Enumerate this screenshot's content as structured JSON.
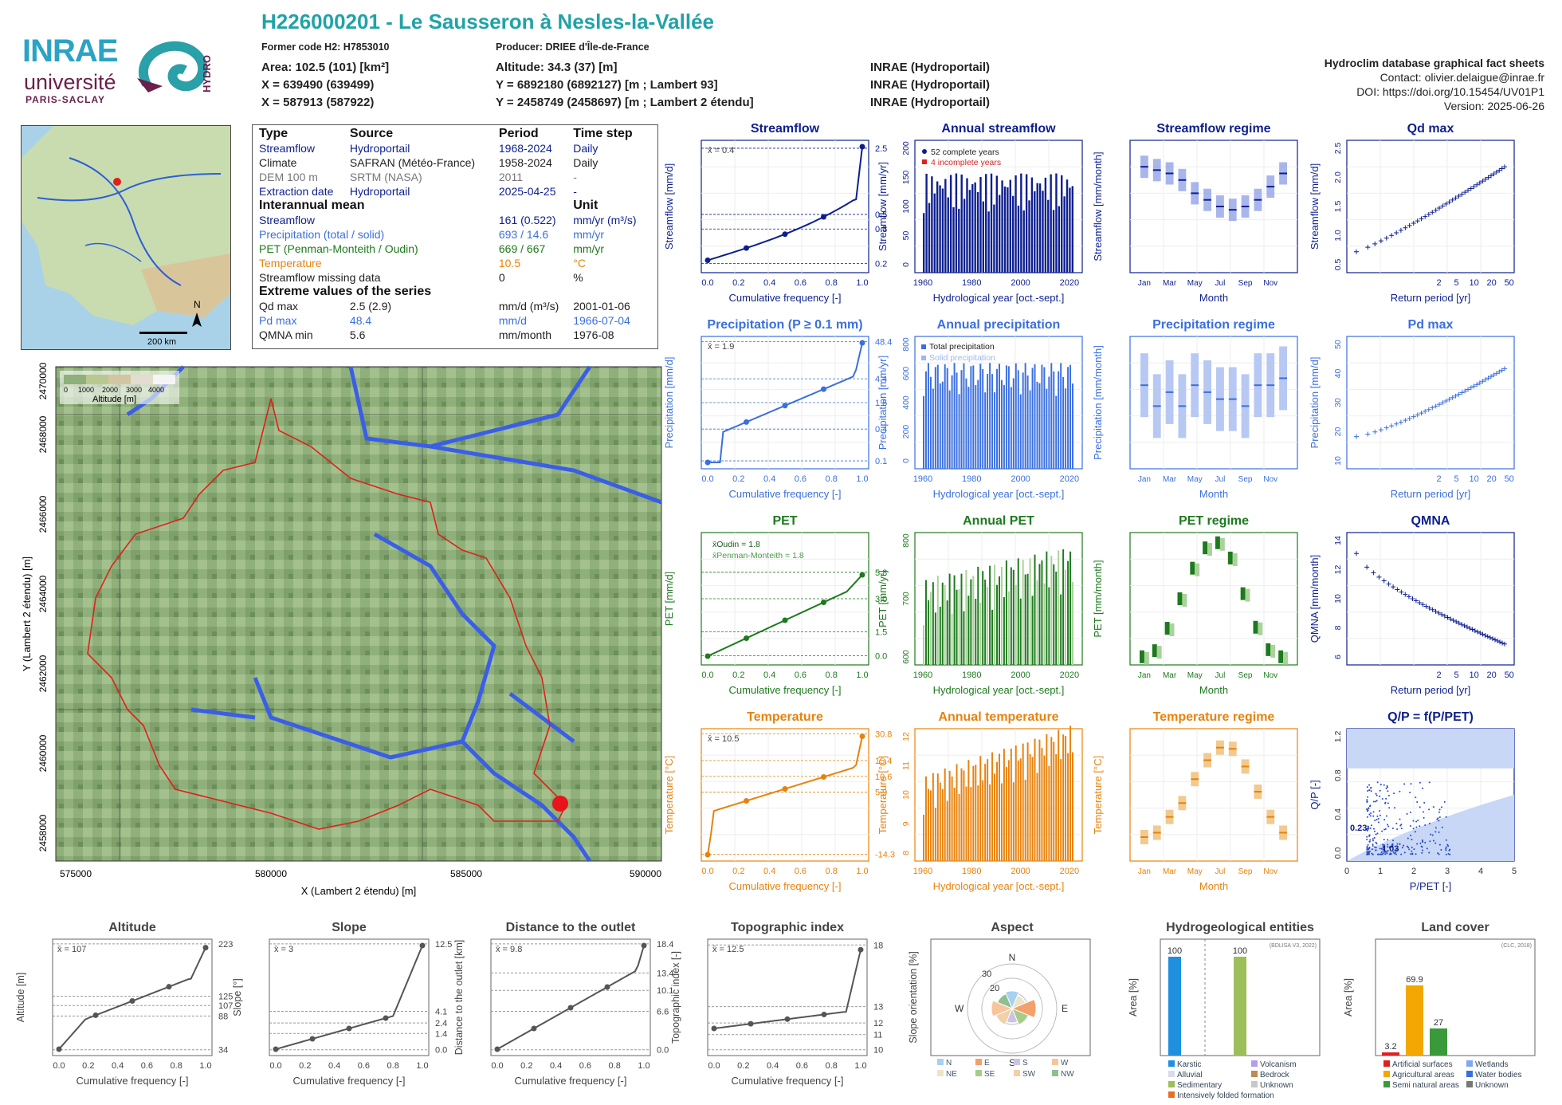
{
  "header": {
    "title": "H226000201 - Le Sausseron à Nesles-la-Vallée",
    "former_code": "Former code H2: H7853010",
    "producer": "Producer: DRIEE d'Île-de-France",
    "area": "Area: 102.5 (101) [km²]",
    "altitude": "Altitude: 34.3 (37) [m]",
    "x93": "X = 639490 (639499)",
    "y93": "Y = 6892180 (6892127) [m ; Lambert 93]",
    "x2": "X = 587913 (587922)",
    "y2": "Y = 2458749 (2458697) [m ; Lambert 2 étendu]",
    "src1": "INRAE (Hydroportail)",
    "src2": "INRAE (Hydroportail)",
    "src3": "INRAE (Hydroportail)",
    "db_title": "Hydroclim database graphical fact sheets",
    "contact": "Contact: olivier.delaigue@inrae.fr",
    "doi": "DOI: https://doi.org/10.15454/UV01P1",
    "version": "Version: 2025-06-26"
  },
  "logos": {
    "inrae": "INRAE",
    "universite": "université",
    "paris_saclay": "PARIS-SACLAY",
    "hydro": "HYDRO"
  },
  "colors": {
    "flow": "#0d1f8f",
    "prec": "#3a6fe0",
    "pet": "#1d7a1d",
    "temp": "#e8820c",
    "title_teal": "#20a3a8",
    "basin": "#e0201c"
  },
  "info": {
    "h_type": "Type",
    "h_source": "Source",
    "h_period": "Period",
    "h_step": "Time step",
    "rows": [
      {
        "type": "Streamflow",
        "source": "Hydroportail",
        "period": "1968-2024",
        "step": "Daily",
        "cls": "c-flow"
      },
      {
        "type": "Climate",
        "source": "SAFRAN (Météo-France)",
        "period": "1958-2024",
        "step": "Daily",
        "cls": ""
      },
      {
        "type": "DEM 100 m",
        "source": "SRTM (NASA)",
        "period": "2011",
        "step": "-",
        "cls": "c-gray"
      },
      {
        "type": "Extraction date",
        "source": "Hydroportail",
        "period": "2025-04-25",
        "step": "-",
        "cls": "c-flow"
      }
    ],
    "h_mean": "Interannual mean",
    "h_unit": "Unit",
    "means": [
      {
        "name": "Streamflow",
        "value": "161 (0.522)",
        "unit": "mm/yr (m³/s)",
        "cls": "c-flow"
      },
      {
        "name": "Precipitation (total / solid)",
        "value": "693 / 14.6",
        "unit": "mm/yr",
        "cls": "c-prec"
      },
      {
        "name": "PET (Penman-Monteith / Oudin)",
        "value": "669 / 667",
        "unit": "mm/yr",
        "cls": "c-pet"
      },
      {
        "name": "Temperature",
        "value": "10.5",
        "unit": "°C",
        "cls": "c-temp"
      },
      {
        "name": "Streamflow missing data",
        "value": "0",
        "unit": "%",
        "cls": ""
      }
    ],
    "h_extreme": "Extreme values of the series",
    "extremes": [
      {
        "name": "Qd max",
        "value": "2.5 (2.9)",
        "unit": "mm/d (m³/s)",
        "date": "2001-01-06",
        "cls": ""
      },
      {
        "name": "Pd max",
        "value": "48.4",
        "unit": "mm/d",
        "date": "1966-07-04",
        "cls": "c-prec"
      },
      {
        "name": "QMNA min",
        "value": "5.6",
        "unit": "mm/month",
        "date": "1976-08",
        "cls": ""
      }
    ]
  },
  "inset_map": {
    "scale": "200 km",
    "north": "N"
  },
  "basin_map": {
    "xlabel": "X (Lambert 2 étendu) [m]",
    "ylabel": "Y (Lambert 2 étendu) [m]",
    "xticks": [
      "575000",
      "580000",
      "585000",
      "590000"
    ],
    "yticks": [
      "2458000",
      "2460000",
      "2462000",
      "2464000",
      "2466000",
      "2468000",
      "2470000"
    ],
    "legend_title": "Altitude [m]",
    "legend_ticks": [
      "0",
      "1000",
      "2000",
      "3000",
      "4000"
    ]
  },
  "chart_data": [
    {
      "id": "streamflow",
      "type": "line",
      "title": "Streamflow",
      "xlabel": "Cumulative frequency [-]",
      "ylabel": "Streamflow [mm/d]",
      "mean": "x̄ = 0.4",
      "right_ticks": [
        "2.5",
        "0.5",
        "0.3",
        "0.2"
      ],
      "x": [
        0,
        0.25,
        0.5,
        0.75,
        1
      ],
      "y": [
        0.2,
        0.3,
        0.4,
        0.5,
        2.5
      ]
    },
    {
      "id": "annual_streamflow",
      "type": "bar",
      "title": "Annual streamflow",
      "xlabel": "Hydrological year [oct.-sept.]",
      "ylabel": "Streamflow [mm/yr]",
      "legend": [
        "52 complete years",
        "4 incomplete years"
      ],
      "xticks": [
        "1960",
        "1980",
        "2000",
        "2020"
      ],
      "yticks": [
        "0",
        "50",
        "100",
        "150",
        "200"
      ]
    },
    {
      "id": "streamflow_regime",
      "type": "bar",
      "title": "Streamflow regime",
      "xlabel": "Month",
      "ylabel": "Streamflow [mm/month]",
      "months": [
        "Jan",
        "Mar",
        "May",
        "Jul",
        "Sep",
        "Nov"
      ],
      "values": [
        16,
        15.5,
        15,
        14,
        12,
        11,
        10,
        9.5,
        10,
        11,
        13,
        15
      ]
    },
    {
      "id": "qd_max",
      "type": "scatter",
      "title": "Qd max",
      "xlabel": "Return period [yr]",
      "ylabel": "Streamflow [mm/d]",
      "xticks": [
        "2",
        "5",
        "10",
        "20",
        "50"
      ],
      "yticks": [
        "0.5",
        "1.0",
        "1.5",
        "2.0",
        "2.5"
      ]
    },
    {
      "id": "precipitation",
      "type": "line",
      "title": "Precipitation (P ≥ 0.1 mm)",
      "xlabel": "Cumulative frequency [-]",
      "ylabel": "Precipitation [mm/d]",
      "mean": "x̄ = 1.9",
      "right_ticks": [
        "48.4",
        "4.4",
        "1.5",
        "0.4",
        "0.1"
      ]
    },
    {
      "id": "annual_precipitation",
      "type": "bar",
      "title": "Annual precipitation",
      "xlabel": "Hydrological year [oct.-sept.]",
      "ylabel": "Precipitation [mm/yr]",
      "legend": [
        "Total precipitation",
        "Solid precipitation"
      ],
      "xticks": [
        "1960",
        "1980",
        "2000",
        "2020"
      ],
      "yticks": [
        "0",
        "200",
        "400",
        "600",
        "800"
      ]
    },
    {
      "id": "precipitation_regime",
      "type": "bar",
      "title": "Precipitation regime",
      "xlabel": "Month",
      "ylabel": "Precipitation [mm/month]",
      "months": [
        "Jan",
        "Mar",
        "May",
        "Jul",
        "Sep",
        "Nov"
      ],
      "values": [
        60,
        45,
        55,
        45,
        60,
        55,
        50,
        50,
        45,
        60,
        60,
        65
      ]
    },
    {
      "id": "pd_max",
      "type": "scatter",
      "title": "Pd max",
      "xlabel": "Return period [yr]",
      "ylabel": "Precipitation [mm/d]",
      "xticks": [
        "2",
        "5",
        "10",
        "20",
        "50"
      ],
      "yticks": [
        "10",
        "20",
        "30",
        "40",
        "50"
      ]
    },
    {
      "id": "pet",
      "type": "line",
      "title": "PET",
      "xlabel": "Cumulative frequency [-]",
      "ylabel": "PET [mm/d]",
      "mean1": "x̄Oudin = 1.8",
      "mean2": "x̄Penman-Monteith = 1.8",
      "right_ticks": [
        "5.8",
        "3.0",
        "1.5",
        "0.0"
      ]
    },
    {
      "id": "annual_pet",
      "type": "bar",
      "title": "Annual PET",
      "xlabel": "Hydrological year [oct.-sept.]",
      "ylabel": "PET [mm/yr]",
      "xticks": [
        "1960",
        "1980",
        "2000",
        "2020"
      ],
      "yticks": [
        "600",
        "700",
        "800"
      ]
    },
    {
      "id": "pet_regime",
      "type": "bar",
      "title": "PET regime",
      "xlabel": "Month",
      "ylabel": "PET [mm/month]",
      "months": [
        "Jan",
        "Mar",
        "May",
        "Jul",
        "Sep",
        "Nov"
      ],
      "values": [
        8,
        14,
        36,
        65,
        95,
        115,
        120,
        105,
        70,
        37,
        15,
        8
      ]
    },
    {
      "id": "qmna",
      "type": "scatter",
      "title": "QMNA",
      "xlabel": "Return period [yr]",
      "ylabel": "QMNA [mm/month]",
      "xticks": [
        "2",
        "5",
        "10",
        "20",
        "50"
      ],
      "yticks": [
        "6",
        "8",
        "10",
        "12",
        "14"
      ]
    },
    {
      "id": "temperature",
      "type": "line",
      "title": "Temperature",
      "xlabel": "Cumulative frequency [-]",
      "ylabel": "Temperature [°C]",
      "mean": "x̄ = 10.5",
      "right_ticks": [
        "30.8",
        "15.4",
        "10.6",
        "5.9",
        "-14.3"
      ]
    },
    {
      "id": "annual_temperature",
      "type": "bar",
      "title": "Annual temperature",
      "xlabel": "Hydrological year [oct.-sept.]",
      "ylabel": "Temperature [°C]",
      "xticks": [
        "1960",
        "1980",
        "2000",
        "2020"
      ],
      "yticks": [
        "8",
        "9",
        "10",
        "11",
        "12"
      ]
    },
    {
      "id": "temperature_regime",
      "type": "bar",
      "title": "Temperature regime",
      "xlabel": "Month",
      "ylabel": "Temperature [°C]",
      "months": [
        "Jan",
        "Mar",
        "May",
        "Jul",
        "Sep",
        "Nov"
      ],
      "values": [
        3.8,
        4.5,
        7,
        9.2,
        13,
        16,
        18,
        17.8,
        15,
        11,
        7,
        4.5
      ]
    },
    {
      "id": "qp",
      "type": "scatter",
      "title": "Q/P = f(P/PET)",
      "xlabel": "P/PET [-]",
      "ylabel": "Q/P [-]",
      "annot1": "0.23",
      "annot2": "1.03",
      "xticks": [
        "0",
        "1",
        "2",
        "3",
        "4",
        "5"
      ],
      "yticks": [
        "0.0",
        "0.4",
        "0.8",
        "1.2"
      ]
    },
    {
      "id": "altitude",
      "type": "line",
      "title": "Altitude",
      "xlabel": "Cumulative frequency [-]",
      "ylabel": "Altitude [m]",
      "mean": "x̄ = 107",
      "right_ticks": [
        "223",
        "125",
        "107",
        "88",
        "34"
      ]
    },
    {
      "id": "slope",
      "type": "line",
      "title": "Slope",
      "xlabel": "Cumulative frequency [-]",
      "ylabel": "Slope [°]",
      "mean": "x̄ = 3",
      "right_ticks": [
        "12.5",
        "4.1",
        "2.4",
        "1.4",
        "0.0"
      ]
    },
    {
      "id": "distance",
      "type": "line",
      "title": "Distance to the outlet",
      "xlabel": "Cumulative frequency [-]",
      "ylabel": "Distance to the outlet [km]",
      "mean": "x̄ = 9.8",
      "right_ticks": [
        "18.4",
        "13.4",
        "10.1",
        "6.6",
        "0.0"
      ]
    },
    {
      "id": "topo",
      "type": "line",
      "title": "Topographic index",
      "xlabel": "Cumulative frequency [-]",
      "ylabel": "Topographic index [-]",
      "mean": "x̄ = 12.5",
      "right_ticks": [
        "18",
        "13",
        "12",
        "11",
        "10"
      ]
    },
    {
      "id": "aspect",
      "type": "pie",
      "title": "Aspect",
      "ylabel": "Slope orientation [%]",
      "dirs": [
        "N",
        "E",
        "S",
        "W"
      ],
      "rings": [
        "10",
        "20",
        "30"
      ],
      "legend": [
        "N",
        "E",
        "S",
        "W",
        "NE",
        "SE",
        "SW",
        "NW"
      ]
    },
    {
      "id": "hydrogeo",
      "type": "bar",
      "title": "Hydrogeological entities",
      "ylabel": "Area [%]",
      "source": "(BDLISA V3, 2022)",
      "values": [
        "100",
        "100"
      ],
      "legend": [
        "Karstic",
        "Volcanism",
        "Alluvial",
        "Bedrock",
        "Sedimentary",
        "Unknown",
        "Intensively folded formation"
      ]
    },
    {
      "id": "landcover",
      "type": "bar",
      "title": "Land cover",
      "ylabel": "Area [%]",
      "source": "(CLC, 2018)",
      "values": [
        "3.2",
        "69.9",
        "27"
      ],
      "legend": [
        "Artificial surfaces",
        "Wetlands",
        "Agricultural areas",
        "Water bodies",
        "Semi natural areas",
        "Unknown"
      ]
    }
  ],
  "common": {
    "cf_ticks": [
      "0.0",
      "0.2",
      "0.4",
      "0.6",
      "0.8",
      "1.0"
    ],
    "year_ticks": [
      "1960",
      "1980",
      "2000",
      "2020"
    ]
  }
}
